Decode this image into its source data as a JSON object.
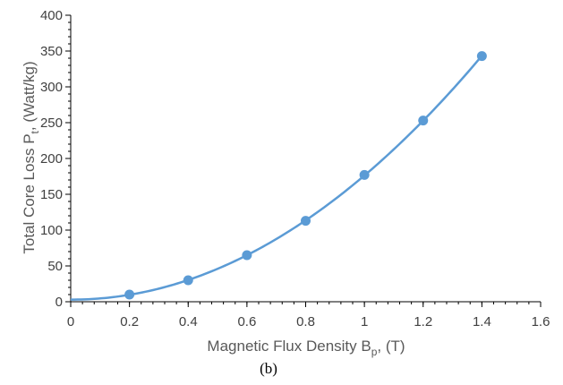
{
  "chart_data": {
    "type": "scatter",
    "xlabel": {
      "text": "Magnetic Flux Density B",
      "sub": "p",
      "suffix": ", (T)"
    },
    "ylabel": {
      "text": "Total Core Loss P",
      "sub": "t",
      "suffix": ", (Watt/kg)"
    },
    "xlim": [
      0,
      1.6
    ],
    "ylim": [
      0,
      400
    ],
    "xticks": [
      "0",
      "0.2",
      "0.4",
      "0.6",
      "0.8",
      "1",
      "1.2",
      "1.4",
      "1.6"
    ],
    "yticks": [
      "0",
      "50",
      "100",
      "150",
      "200",
      "250",
      "300",
      "350",
      "400"
    ],
    "grid": false,
    "legend": "none",
    "series": [
      {
        "x": [
          0.2,
          0.4,
          0.6,
          0.8,
          1.0,
          1.2,
          1.4
        ],
        "y": [
          10,
          30,
          65,
          113,
          177,
          253,
          343
        ],
        "markers": true,
        "trendline": {
          "type": "polynomial",
          "x_from": 0,
          "x_to": 1.4
        }
      }
    ],
    "colors": {
      "series": "#5b9bd5",
      "axis": "#000000",
      "text": "#404040"
    }
  },
  "caption": "(b)"
}
